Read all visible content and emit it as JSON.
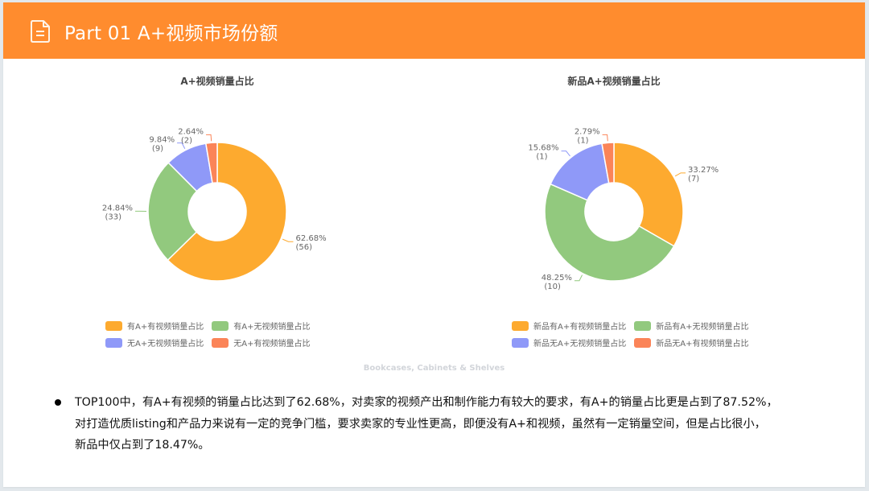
{
  "header": {
    "title": "Part 01  A+视频市场份额",
    "icon": "document-icon",
    "color": "#ff8c2e"
  },
  "source_label": "Bookcases, Cabinets & Shelves",
  "bullet": {
    "lines": [
      "TOP100中，有A+有视频的销量占比达到了62.68%，对卖家的视频产出和制作能力有较大的要求，有A+的销量占比更是占到了87.52%，",
      "对打造优质listing和产品力来说有一定的竞争门槛，要求卖家的专业性更高，即便没有A+和视频，虽然有一定销量空间，但是占比很小，",
      "新品中仅占到了18.47%。"
    ]
  },
  "chart_data": [
    {
      "type": "pie",
      "subtype": "donut",
      "title": "A+视频销量占比",
      "categories": [
        "有A+有视频销量占比",
        "有A+无视频销量占比",
        "无A+无视频销量占比",
        "无A+有视频销量占比"
      ],
      "values": [
        62.68,
        24.84,
        9.84,
        2.64
      ],
      "counts": [
        56,
        33,
        9,
        2
      ],
      "labels": [
        "62.68%",
        "24.84%",
        "9.84%",
        "2.64%"
      ],
      "count_labels": [
        "(56)",
        "(33)",
        "(9)",
        "(2)"
      ],
      "colors": [
        "#fdaa2f",
        "#92c97e",
        "#8f99f8",
        "#fb8458"
      ],
      "legend_position": "bottom"
    },
    {
      "type": "pie",
      "subtype": "donut",
      "title": "新品A+视频销量占比",
      "categories": [
        "新品有A+有视频销量占比",
        "新品有A+无视频销量占比",
        "新品无A+无视频销量占比",
        "新品无A+有视频销量占比"
      ],
      "values": [
        33.27,
        48.25,
        15.68,
        2.79
      ],
      "counts": [
        7,
        10,
        1,
        1
      ],
      "labels": [
        "33.27%",
        "48.25%",
        "15.68%",
        "2.79%"
      ],
      "count_labels": [
        "(7)",
        "(10)",
        "(1)",
        "(1)"
      ],
      "colors": [
        "#fdaa2f",
        "#92c97e",
        "#8f99f8",
        "#fb8458"
      ],
      "legend_position": "bottom"
    }
  ]
}
